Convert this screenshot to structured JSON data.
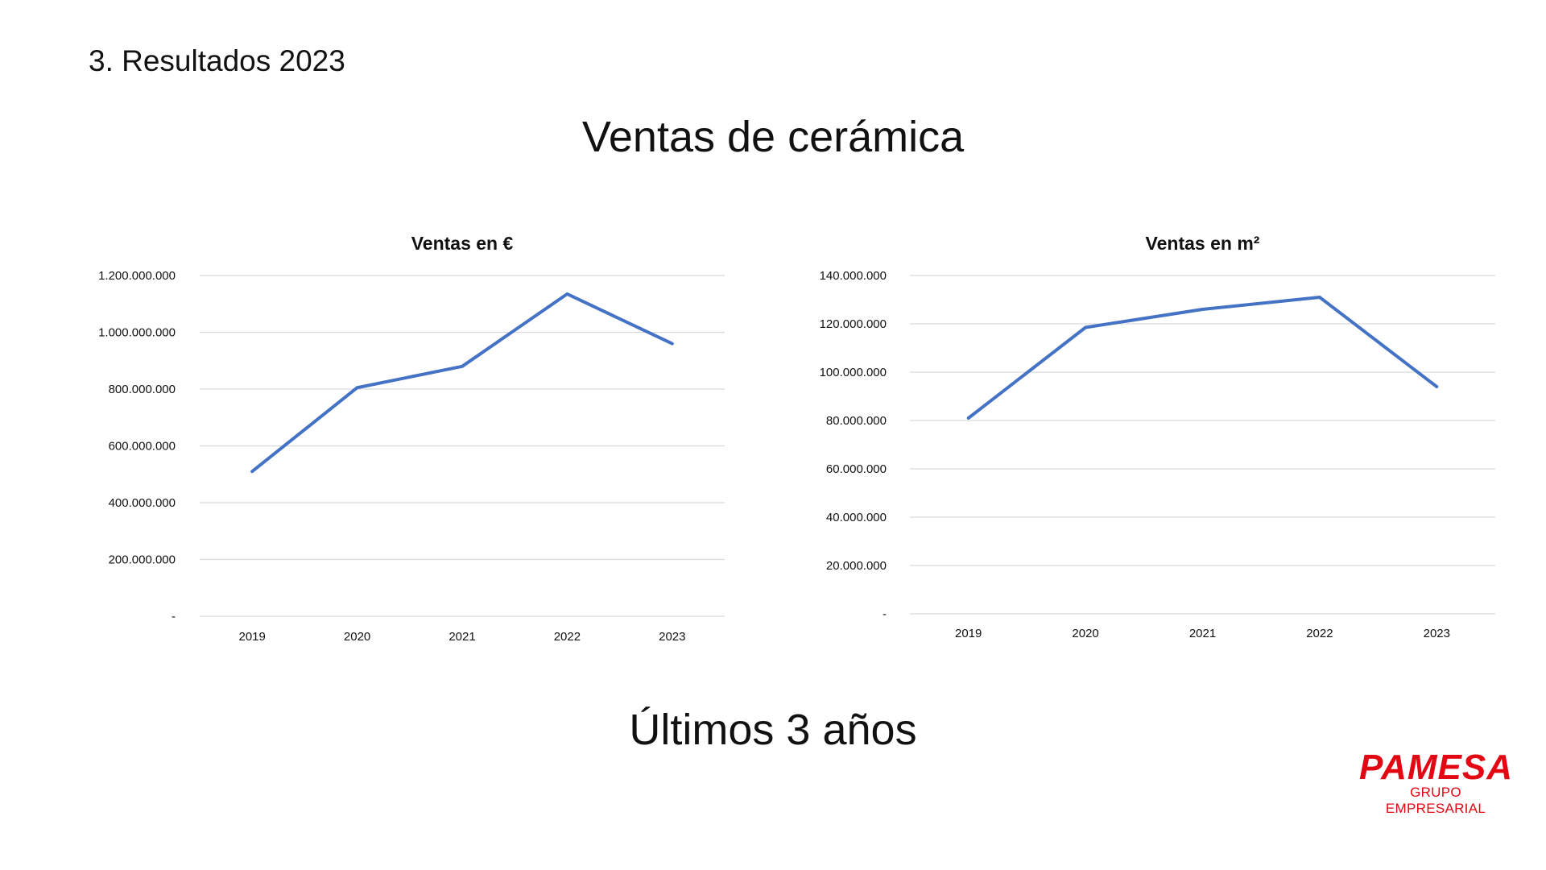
{
  "slide": {
    "section_title": "3. Resultados 2023",
    "main_title": "Ventas de cerámica",
    "footer_title": "Últimos 3 años"
  },
  "logo": {
    "word": "PAMESA",
    "subtitle": "GRUPO EMPRESARIAL",
    "color": "#e30613"
  },
  "colors": {
    "series": "#4472c4",
    "grid": "#d9d9d9",
    "axis_text": "#111111"
  },
  "chart_data": [
    {
      "type": "line",
      "title": "Ventas en €",
      "xlabel": "",
      "ylabel": "",
      "categories": [
        "2019",
        "2020",
        "2021",
        "2022",
        "2023"
      ],
      "series": [
        {
          "values": [
            510000000,
            805000000,
            880000000,
            1135000000,
            960000000
          ]
        }
      ],
      "ylim": [
        0,
        1200000000
      ],
      "yticks": [
        "-",
        "200.000.000",
        "400.000.000",
        "600.000.000",
        "800.000.000",
        "1.000.000.000",
        "1.200.000.000"
      ],
      "grid": true,
      "legend": "none"
    },
    {
      "type": "line",
      "title": "Ventas en m²",
      "xlabel": "",
      "ylabel": "",
      "categories": [
        "2019",
        "2020",
        "2021",
        "2022",
        "2023"
      ],
      "series": [
        {
          "values": [
            81000000,
            118500000,
            126000000,
            131000000,
            94000000
          ]
        }
      ],
      "ylim": [
        0,
        140000000
      ],
      "yticks": [
        "-",
        "20.000.000",
        "40.000.000",
        "60.000.000",
        "80.000.000",
        "100.000.000",
        "120.000.000",
        "140.000.000"
      ],
      "grid": true,
      "legend": "none"
    }
  ]
}
